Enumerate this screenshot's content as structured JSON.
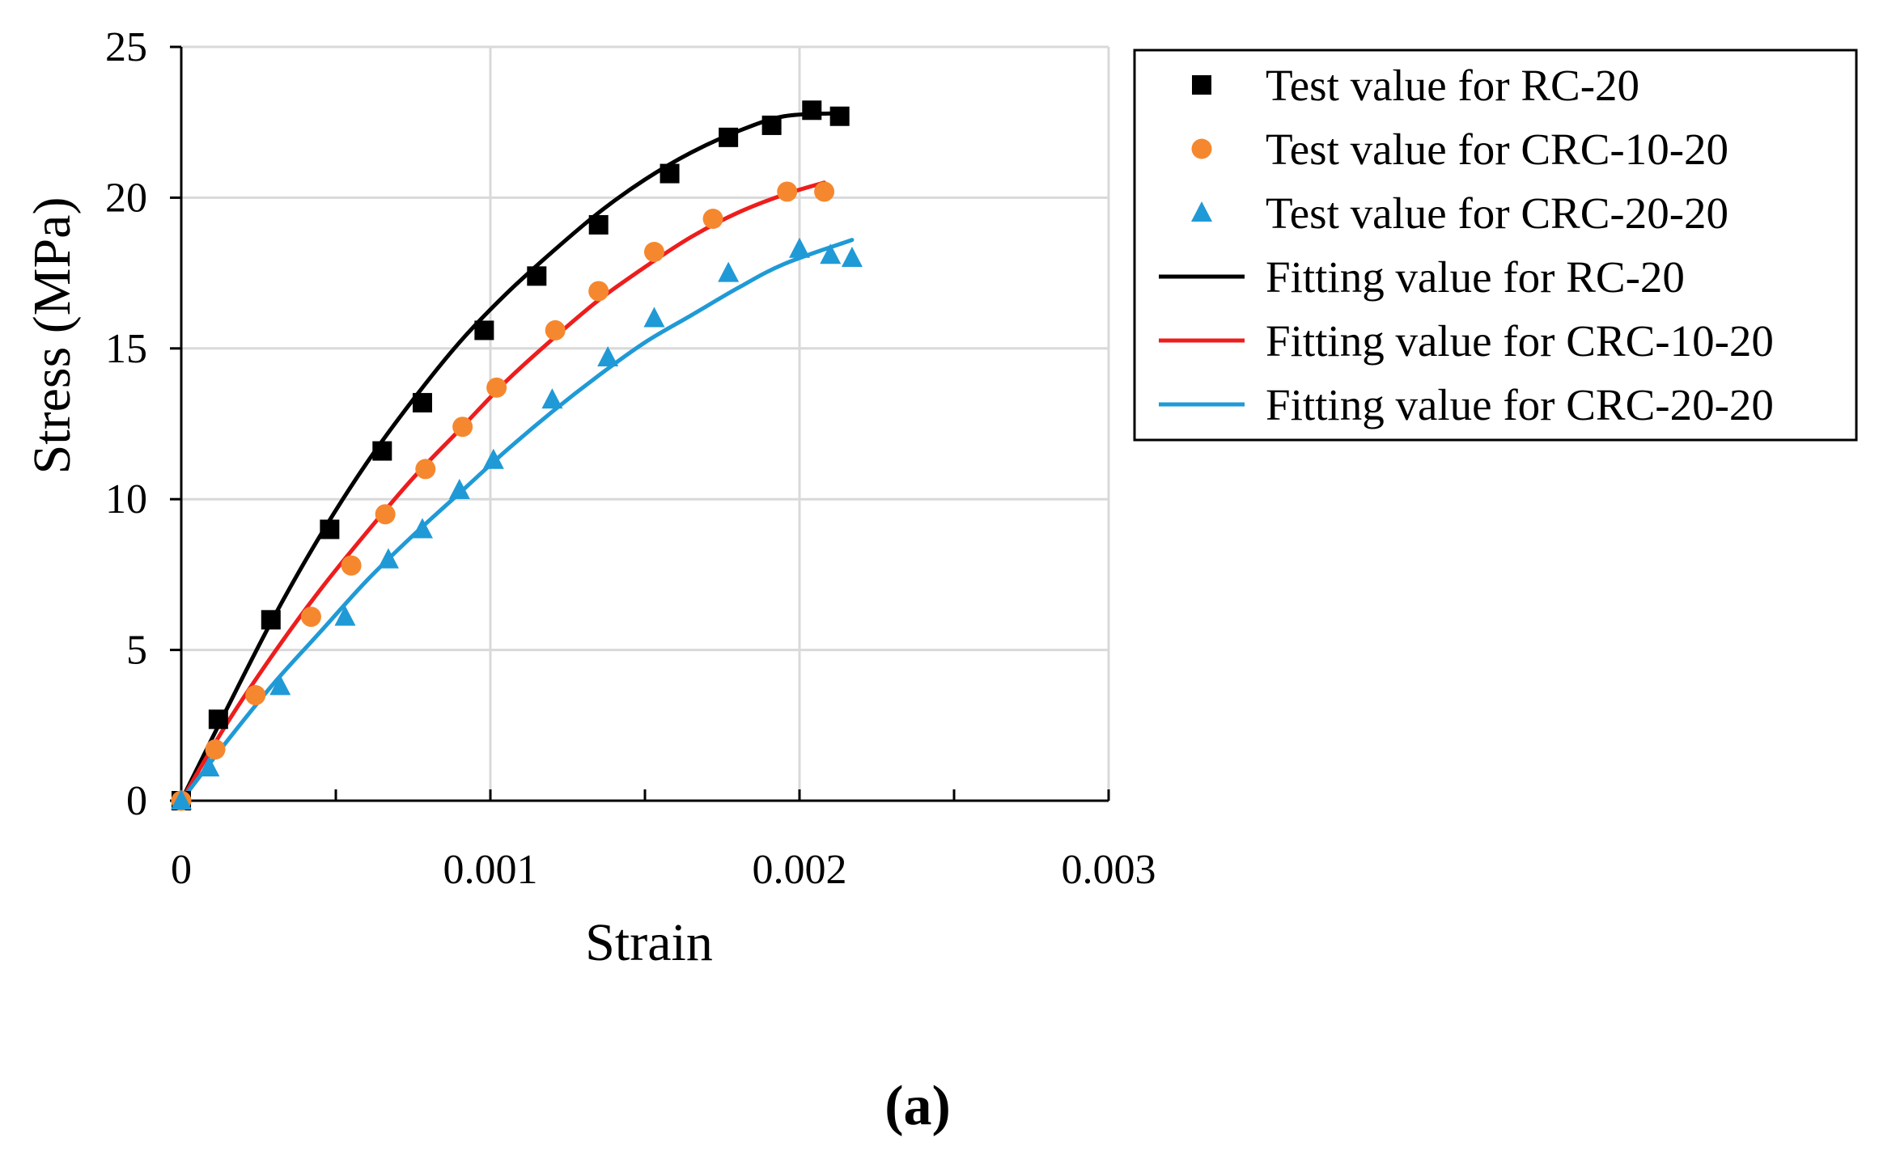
{
  "panel_label": "(a)",
  "colors": {
    "rc_marker": "#000000",
    "crc10_marker": "#F5882F",
    "crc20_marker": "#1F9AD6",
    "rc_fit": "#000000",
    "crc10_fit": "#EE1D1D",
    "crc20_fit": "#1F9AD6",
    "grid": "#D9D9D9"
  },
  "chart_data": {
    "type": "scatter",
    "title": "",
    "xlabel": "Strain",
    "ylabel": "Stress (MPa)",
    "xlim": [
      0,
      0.003
    ],
    "ylim": [
      0,
      25
    ],
    "xticks": [
      0,
      0.0005,
      0.001,
      0.0015,
      0.002,
      0.0025,
      0.003
    ],
    "xtick_labels": [
      "0",
      "",
      "0.001",
      "",
      "0.002",
      "",
      "0.003"
    ],
    "yticks": [
      0,
      5,
      10,
      15,
      20,
      25
    ],
    "ytick_labels": [
      "0",
      "5",
      "10",
      "15",
      "20",
      "25"
    ],
    "grid": true,
    "legend_position": "right",
    "series": [
      {
        "name": "Test value for RC-20",
        "kind": "marker",
        "marker": "square",
        "color": "#000000",
        "x": [
          0,
          0.00012,
          0.00029,
          0.00048,
          0.00065,
          0.00078,
          0.00098,
          0.00115,
          0.00135,
          0.00158,
          0.00177,
          0.00191,
          0.00204,
          0.00213
        ],
        "y": [
          0,
          2.7,
          6.0,
          9.0,
          11.6,
          13.2,
          15.6,
          17.4,
          19.1,
          20.8,
          22.0,
          22.4,
          22.9,
          22.7
        ]
      },
      {
        "name": "Test value for CRC-10-20",
        "kind": "marker",
        "marker": "circle",
        "color": "#F5882F",
        "x": [
          0,
          0.00011,
          0.00024,
          0.00042,
          0.00055,
          0.00066,
          0.00079,
          0.00091,
          0.00102,
          0.00121,
          0.00135,
          0.00153,
          0.00172,
          0.00196,
          0.00208
        ],
        "y": [
          0,
          1.7,
          3.5,
          6.1,
          7.8,
          9.5,
          11.0,
          12.4,
          13.7,
          15.6,
          16.9,
          18.2,
          19.3,
          20.2,
          20.2
        ]
      },
      {
        "name": "Test value for CRC-20-20",
        "kind": "marker",
        "marker": "triangle",
        "color": "#1F9AD6",
        "x": [
          0,
          9e-05,
          0.00032,
          0.00053,
          0.00067,
          0.00078,
          0.0009,
          0.00101,
          0.0012,
          0.00138,
          0.00153,
          0.00177,
          0.002,
          0.0021,
          0.00217
        ],
        "y": [
          0,
          1.1,
          3.8,
          6.1,
          8.0,
          9.0,
          10.3,
          11.3,
          13.3,
          14.7,
          16.0,
          17.5,
          18.3,
          18.1,
          18.0
        ]
      },
      {
        "name": "Fitting value for RC-20",
        "kind": "line",
        "color": "#000000",
        "x": [
          0,
          0.00015,
          0.0003,
          0.00045,
          0.0006,
          0.00075,
          0.0009,
          0.00105,
          0.0012,
          0.00135,
          0.0015,
          0.00165,
          0.0018,
          0.00195,
          0.00213
        ],
        "y": [
          0,
          3.1,
          6.1,
          8.8,
          11.2,
          13.3,
          15.2,
          16.8,
          18.2,
          19.5,
          20.6,
          21.5,
          22.2,
          22.7,
          22.8
        ]
      },
      {
        "name": "Fitting value for CRC-10-20",
        "kind": "line",
        "color": "#EE1D1D",
        "x": [
          0,
          0.00015,
          0.0003,
          0.00045,
          0.0006,
          0.00075,
          0.0009,
          0.00105,
          0.0012,
          0.00135,
          0.0015,
          0.00165,
          0.0018,
          0.00195,
          0.00208
        ],
        "y": [
          0,
          2.6,
          4.9,
          7.0,
          8.9,
          10.7,
          12.3,
          13.9,
          15.3,
          16.6,
          17.7,
          18.7,
          19.5,
          20.1,
          20.5
        ]
      },
      {
        "name": "Fitting value for CRC-20-20",
        "kind": "line",
        "color": "#1F9AD6",
        "x": [
          0,
          0.00015,
          0.0003,
          0.00045,
          0.0006,
          0.00075,
          0.0009,
          0.00105,
          0.0012,
          0.00135,
          0.0015,
          0.00165,
          0.0018,
          0.00195,
          0.00217
        ],
        "y": [
          0,
          2.0,
          3.9,
          5.6,
          7.3,
          8.8,
          10.2,
          11.6,
          12.9,
          14.1,
          15.2,
          16.1,
          17.0,
          17.8,
          18.6
        ]
      }
    ]
  }
}
